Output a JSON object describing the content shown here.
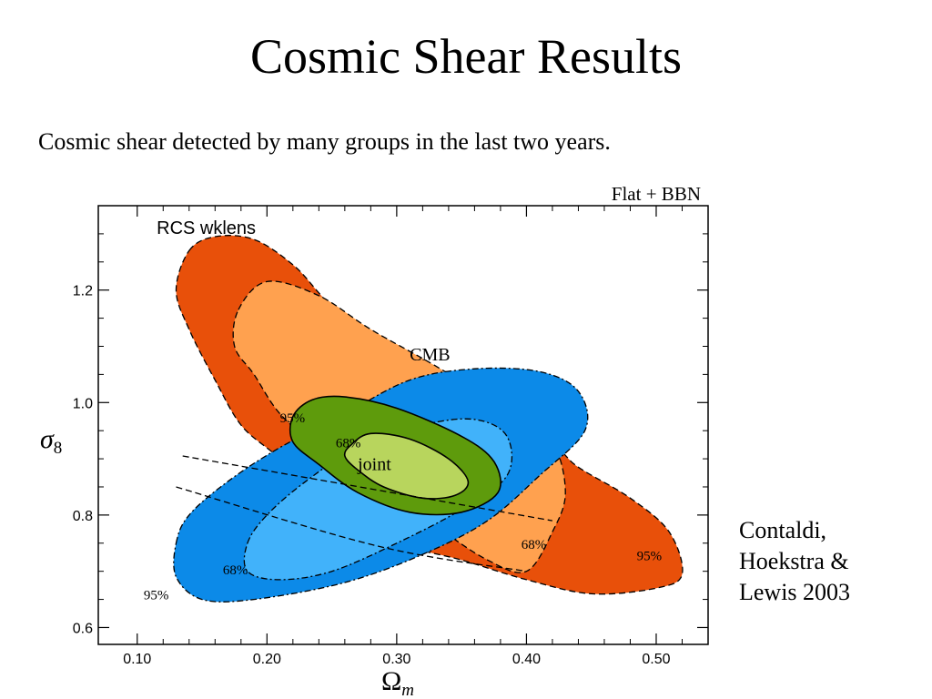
{
  "slide": {
    "title": "Cosmic Shear Results",
    "subtitle": "Cosmic shear detected by many groups in the last two years.",
    "citation": "Contaldi,\nHoekstra &\nLewis 2003"
  },
  "chart_data": {
    "type": "contour",
    "corner_label": "Flat + BBN",
    "xlabel": "Ω",
    "xlabel_sub": "m",
    "ylabel": "σ",
    "ylabel_sub": "8",
    "xlim": [
      0.07,
      0.54
    ],
    "ylim": [
      0.57,
      1.35
    ],
    "xticks": [
      0.1,
      0.2,
      0.3,
      0.4,
      0.5
    ],
    "xtick_labels": [
      "0.10",
      "0.20",
      "0.30",
      "0.40",
      "0.50"
    ],
    "yticks": [
      0.6,
      0.8,
      1.0,
      1.2
    ],
    "ytick_labels": [
      "0.6",
      "0.8",
      "1.0",
      "1.2"
    ],
    "colors": {
      "rcs_95": "#e8500a",
      "rcs_68": "#ffa14f",
      "cmb_95": "#0c8ae8",
      "cmb_68": "#41b2fa",
      "joint_95": "#5e9b0c",
      "joint_68": "#b8d55d"
    },
    "series": [
      {
        "name": "RCS wklens",
        "level": "95%",
        "color_key": "rcs_95",
        "points": [
          [
            0.14,
            1.27
          ],
          [
            0.16,
            1.295
          ],
          [
            0.19,
            1.29
          ],
          [
            0.22,
            1.245
          ],
          [
            0.24,
            1.195
          ],
          [
            0.265,
            1.13
          ],
          [
            0.3,
            1.07
          ],
          [
            0.36,
            1.01
          ],
          [
            0.42,
            0.925
          ],
          [
            0.44,
            0.885
          ],
          [
            0.48,
            0.83
          ],
          [
            0.51,
            0.77
          ],
          [
            0.52,
            0.695
          ],
          [
            0.5,
            0.67
          ],
          [
            0.45,
            0.66
          ],
          [
            0.4,
            0.685
          ],
          [
            0.35,
            0.72
          ],
          [
            0.3,
            0.75
          ],
          [
            0.265,
            0.8
          ],
          [
            0.23,
            0.86
          ],
          [
            0.205,
            0.91
          ],
          [
            0.18,
            0.96
          ],
          [
            0.16,
            1.04
          ],
          [
            0.14,
            1.13
          ],
          [
            0.13,
            1.2
          ]
        ]
      },
      {
        "name": "RCS wklens",
        "level": "68%",
        "color_key": "rcs_68",
        "points": [
          [
            0.178,
            1.165
          ],
          [
            0.2,
            1.215
          ],
          [
            0.24,
            1.19
          ],
          [
            0.28,
            1.13
          ],
          [
            0.33,
            1.065
          ],
          [
            0.39,
            0.98
          ],
          [
            0.42,
            0.93
          ],
          [
            0.43,
            0.84
          ],
          [
            0.42,
            0.77
          ],
          [
            0.4,
            0.7
          ],
          [
            0.37,
            0.72
          ],
          [
            0.33,
            0.78
          ],
          [
            0.28,
            0.86
          ],
          [
            0.24,
            0.92
          ],
          [
            0.21,
            0.98
          ],
          [
            0.19,
            1.05
          ],
          [
            0.175,
            1.1
          ]
        ]
      },
      {
        "name": "CMB",
        "level": "95%",
        "color_key": "cmb_95",
        "points": [
          [
            0.13,
            0.75
          ],
          [
            0.14,
            0.8
          ],
          [
            0.17,
            0.86
          ],
          [
            0.21,
            0.92
          ],
          [
            0.26,
            0.98
          ],
          [
            0.31,
            1.04
          ],
          [
            0.36,
            1.06
          ],
          [
            0.41,
            1.055
          ],
          [
            0.44,
            1.02
          ],
          [
            0.445,
            0.95
          ],
          [
            0.41,
            0.87
          ],
          [
            0.37,
            0.79
          ],
          [
            0.32,
            0.73
          ],
          [
            0.26,
            0.68
          ],
          [
            0.19,
            0.65
          ],
          [
            0.15,
            0.65
          ],
          [
            0.13,
            0.69
          ]
        ]
      },
      {
        "name": "CMB",
        "level": "68%",
        "color_key": "cmb_68",
        "points": [
          [
            0.185,
            0.75
          ],
          [
            0.2,
            0.8
          ],
          [
            0.23,
            0.86
          ],
          [
            0.27,
            0.92
          ],
          [
            0.32,
            0.96
          ],
          [
            0.36,
            0.97
          ],
          [
            0.385,
            0.94
          ],
          [
            0.385,
            0.87
          ],
          [
            0.35,
            0.81
          ],
          [
            0.3,
            0.75
          ],
          [
            0.25,
            0.7
          ],
          [
            0.21,
            0.685
          ],
          [
            0.185,
            0.7
          ]
        ]
      },
      {
        "name": "joint",
        "level": "95%",
        "color_key": "joint_95",
        "points": [
          [
            0.22,
            0.975
          ],
          [
            0.235,
            1.005
          ],
          [
            0.26,
            1.01
          ],
          [
            0.3,
            0.99
          ],
          [
            0.35,
            0.94
          ],
          [
            0.375,
            0.895
          ],
          [
            0.378,
            0.84
          ],
          [
            0.35,
            0.805
          ],
          [
            0.31,
            0.805
          ],
          [
            0.27,
            0.84
          ],
          [
            0.24,
            0.89
          ],
          [
            0.22,
            0.93
          ]
        ]
      },
      {
        "name": "joint",
        "level": "68%",
        "color_key": "joint_68",
        "points": [
          [
            0.265,
            0.925
          ],
          [
            0.28,
            0.945
          ],
          [
            0.31,
            0.935
          ],
          [
            0.34,
            0.9
          ],
          [
            0.355,
            0.86
          ],
          [
            0.345,
            0.835
          ],
          [
            0.32,
            0.83
          ],
          [
            0.29,
            0.85
          ],
          [
            0.27,
            0.88
          ],
          [
            0.26,
            0.905
          ]
        ]
      }
    ],
    "dashed_lines": [
      [
        [
          0.135,
          0.905
        ],
        [
          0.42,
          0.79
        ]
      ],
      [
        [
          0.13,
          0.85
        ],
        [
          0.285,
          0.745
        ],
        [
          0.4,
          0.7
        ]
      ]
    ],
    "annotations": [
      {
        "text": "RCS wklens",
        "x": 0.115,
        "y": 1.3,
        "font": "sans",
        "size": 20
      },
      {
        "text": "CMB",
        "x": 0.31,
        "y": 1.075,
        "font": "serif",
        "size": 20
      },
      {
        "text": "joint",
        "x": 0.27,
        "y": 0.88,
        "font": "serif",
        "size": 20
      },
      {
        "text": "95%",
        "x": 0.21,
        "y": 0.965,
        "font": "serif",
        "size": 15
      },
      {
        "text": "68%",
        "x": 0.253,
        "y": 0.92,
        "font": "serif",
        "size": 15
      },
      {
        "text": "68%",
        "x": 0.166,
        "y": 0.695,
        "font": "serif",
        "size": 15
      },
      {
        "text": "95%",
        "x": 0.105,
        "y": 0.65,
        "font": "serif",
        "size": 15
      },
      {
        "text": "68%",
        "x": 0.396,
        "y": 0.74,
        "font": "serif",
        "size": 15
      },
      {
        "text": "95%",
        "x": 0.485,
        "y": 0.72,
        "font": "serif",
        "size": 15
      }
    ]
  }
}
